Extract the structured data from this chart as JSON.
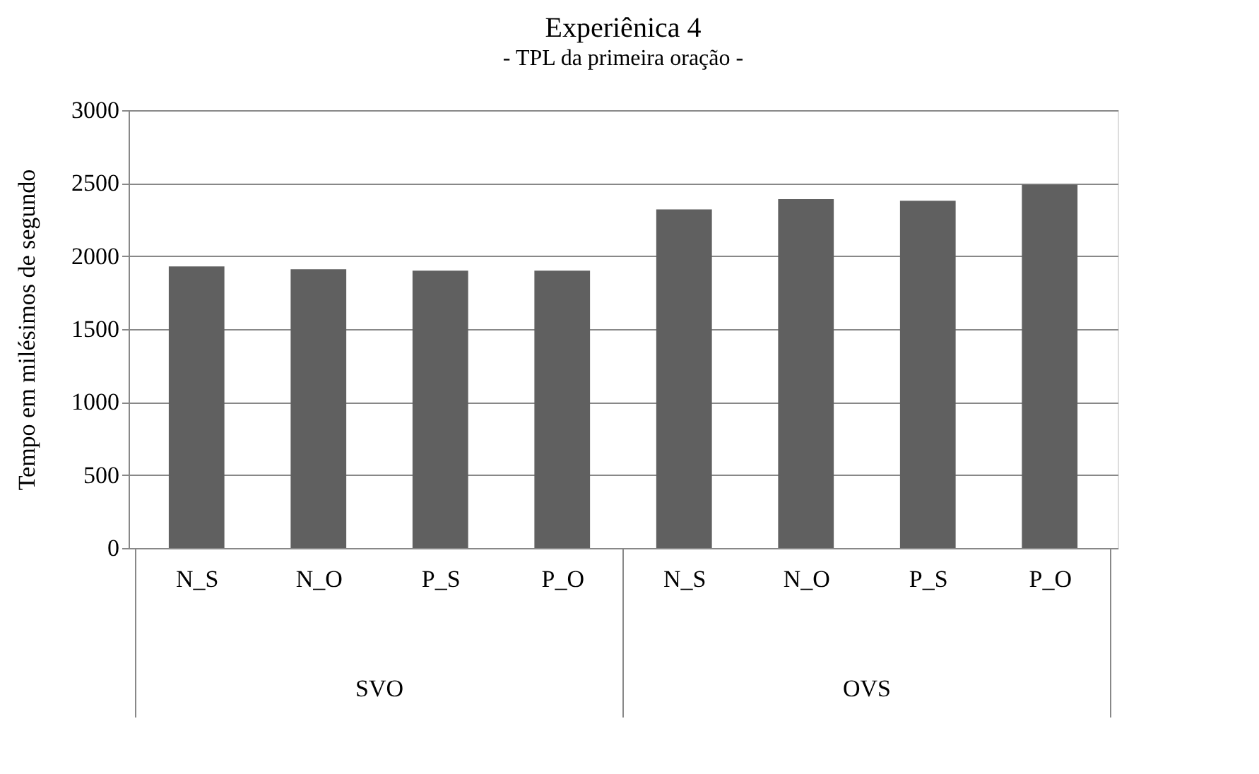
{
  "chart_data": {
    "type": "bar",
    "title": "Experiênica 4",
    "subtitle": "- TPL da primeira oração -",
    "ylabel": "Tempo em milésimos de segundo",
    "categories": [
      "N_S",
      "N_O",
      "P_S",
      "P_O",
      "N_S",
      "N_O",
      "P_S",
      "P_O"
    ],
    "values": [
      1930,
      1910,
      1900,
      1900,
      2320,
      2390,
      2380,
      2490
    ],
    "color": "#606060",
    "annotations": [
      "SVO",
      "OVS"
    ],
    "ylim": [
      0,
      3000
    ],
    "yticks": [
      0,
      500,
      1000,
      1500,
      2000,
      2500,
      3000
    ],
    "grid": "y"
  }
}
